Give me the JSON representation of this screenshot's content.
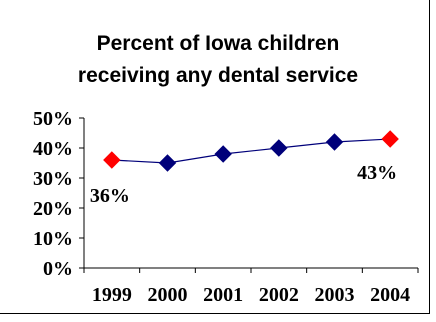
{
  "chart_data": {
    "type": "line",
    "title_lines": [
      "Percent of Iowa children",
      "receiving any dental service"
    ],
    "categories": [
      "1999",
      "2000",
      "2001",
      "2002",
      "2003",
      "2004"
    ],
    "values": [
      36,
      35,
      38,
      40,
      42,
      43
    ],
    "y_tick_labels": [
      "50%",
      "40%",
      "30%",
      "20%",
      "10%",
      "0%"
    ],
    "ylim": [
      0,
      50
    ],
    "y_unit": "%",
    "grid": false,
    "legend": "none",
    "data_labels": [
      {
        "category": "1999",
        "text": "36%"
      },
      {
        "category": "2004",
        "text": "43%"
      }
    ],
    "colors": {
      "line": "#00007a",
      "marker": "#00007a",
      "highlight_marker": "#ff0000",
      "axis": "#000000"
    },
    "highlighted_categories": [
      "1999",
      "2004"
    ]
  }
}
